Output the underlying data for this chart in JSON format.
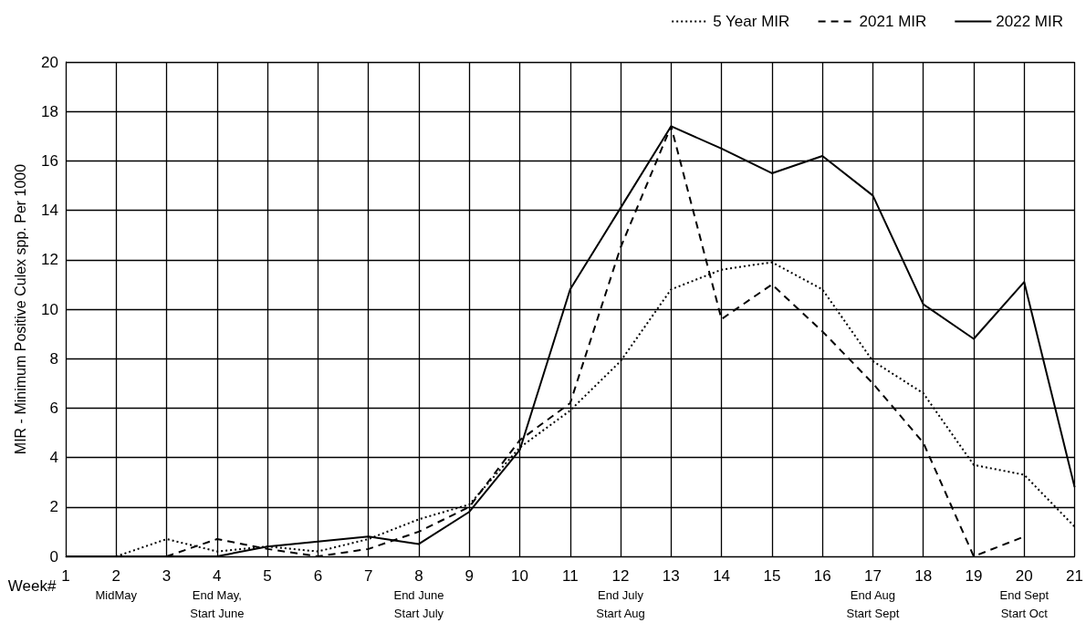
{
  "chart_data": {
    "type": "line",
    "xlabel": "Week#",
    "ylabel": "MIR - Minimum Positive Culex spp. Per 1000",
    "categories": [
      "1",
      "2\nMidMay",
      "3",
      "4\nEnd May,\nStart June",
      "5",
      "6",
      "7",
      "8\nEnd June\nStart July",
      "9",
      "10",
      "11",
      "12\nEnd July\nStart Aug",
      "13",
      "14",
      "15",
      "16",
      "17\nEnd Aug\nStart Sept",
      "18",
      "19",
      "20\nEnd Sept\nStart Oct",
      "21"
    ],
    "series": [
      {
        "name": "5 Year MIR",
        "color": "#000000",
        "line_style": "dotted",
        "values": [
          0,
          0,
          0.7,
          0.2,
          0.4,
          0.2,
          0.7,
          1.5,
          2.1,
          4.4,
          5.9,
          7.9,
          10.8,
          11.6,
          11.9,
          10.8,
          7.9,
          6.6,
          3.7,
          3.3,
          1.2
        ]
      },
      {
        "name": "2021 MIR",
        "color": "#000000",
        "line_style": "dashed",
        "values": [
          null,
          null,
          0,
          0.7,
          0.3,
          0,
          0.3,
          1.0,
          2.0,
          4.7,
          6.2,
          12.5,
          17.4,
          9.6,
          11.0,
          9.1,
          7.0,
          4.6,
          0,
          0.8,
          null
        ]
      },
      {
        "name": "2022 MIR",
        "color": "#000000",
        "line_style": "solid",
        "values": [
          0,
          0,
          0,
          0,
          0.4,
          0.6,
          0.8,
          0.5,
          1.8,
          4.3,
          10.8,
          14.1,
          17.4,
          16.5,
          15.5,
          16.2,
          14.6,
          10.2,
          8.8,
          11.1,
          2.8
        ]
      }
    ],
    "ylim": [
      0,
      20
    ],
    "yticks": [
      0,
      2,
      4,
      6,
      8,
      10,
      12,
      14,
      16,
      18,
      20
    ],
    "grid": true,
    "legend": "top right",
    "marker": "none"
  }
}
